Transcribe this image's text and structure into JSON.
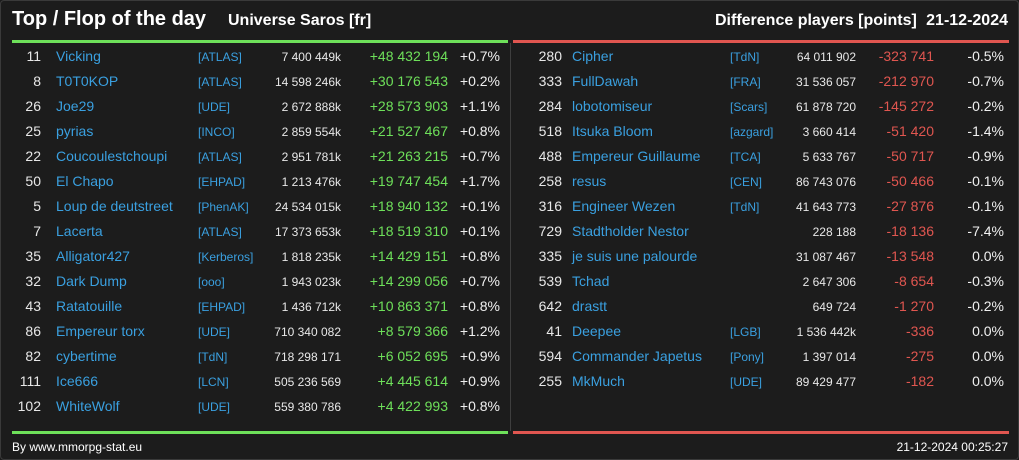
{
  "header": {
    "title": "Top / Flop of the day",
    "universe": "Universe Saros [fr]",
    "metric": "Difference players [points]",
    "date": "21-12-2024"
  },
  "colors": {
    "top_accent": "#6ee05a",
    "flop_accent": "#e05650",
    "link": "#3aa0e0",
    "background": "#1c1c1c"
  },
  "top": [
    {
      "rank": "11",
      "name": "Vicking",
      "tag": "[ATLAS]",
      "points": "7 400 449k",
      "diff": "+48 432 194",
      "pct": "+0.7%"
    },
    {
      "rank": "8",
      "name": "T0T0KOP",
      "tag": "[ATLAS]",
      "points": "14 598 246k",
      "diff": "+30 176 543",
      "pct": "+0.2%"
    },
    {
      "rank": "26",
      "name": "Joe29",
      "tag": "[UDE]",
      "points": "2 672 888k",
      "diff": "+28 573 903",
      "pct": "+1.1%"
    },
    {
      "rank": "25",
      "name": "pyrias",
      "tag": "[INCO]",
      "points": "2 859 554k",
      "diff": "+21 527 467",
      "pct": "+0.8%"
    },
    {
      "rank": "22",
      "name": "Coucoulestchoupi",
      "tag": "[ATLAS]",
      "points": "2 951 781k",
      "diff": "+21 263 215",
      "pct": "+0.7%"
    },
    {
      "rank": "50",
      "name": "El Chapo",
      "tag": "[EHPAD]",
      "points": "1 213 476k",
      "diff": "+19 747 454",
      "pct": "+1.7%"
    },
    {
      "rank": "5",
      "name": "Loup de deutstreet",
      "tag": "[PhenAK]",
      "points": "24 534 015k",
      "diff": "+18 940 132",
      "pct": "+0.1%"
    },
    {
      "rank": "7",
      "name": "Lacerta",
      "tag": "[ATLAS]",
      "points": "17 373 653k",
      "diff": "+18 519 310",
      "pct": "+0.1%"
    },
    {
      "rank": "35",
      "name": "Alligator427",
      "tag": "[Kerberos]",
      "points": "1 818 235k",
      "diff": "+14 429 151",
      "pct": "+0.8%"
    },
    {
      "rank": "32",
      "name": "Dark Dump",
      "tag": "[ooo]",
      "points": "1 943 023k",
      "diff": "+14 299 056",
      "pct": "+0.7%"
    },
    {
      "rank": "43",
      "name": "Ratatouille",
      "tag": "[EHPAD]",
      "points": "1 436 712k",
      "diff": "+10 863 371",
      "pct": "+0.8%"
    },
    {
      "rank": "86",
      "name": "Empereur torx",
      "tag": "[UDE]",
      "points": "710 340 082",
      "diff": "+8 579 366",
      "pct": "+1.2%"
    },
    {
      "rank": "82",
      "name": "cybertime",
      "tag": "[TdN]",
      "points": "718 298 171",
      "diff": "+6 052 695",
      "pct": "+0.9%"
    },
    {
      "rank": "111",
      "name": "Ice666",
      "tag": "[LCN]",
      "points": "505 236 569",
      "diff": "+4 445 614",
      "pct": "+0.9%"
    },
    {
      "rank": "102",
      "name": "WhiteWolf",
      "tag": "[UDE]",
      "points": "559 380 786",
      "diff": "+4 422 993",
      "pct": "+0.8%"
    }
  ],
  "flop": [
    {
      "rank": "280",
      "name": "Cipher",
      "tag": "[TdN]",
      "points": "64 011 902",
      "diff": "-323 741",
      "pct": "-0.5%"
    },
    {
      "rank": "333",
      "name": "FullDawah",
      "tag": "[FRA]",
      "points": "31 536 057",
      "diff": "-212 970",
      "pct": "-0.7%"
    },
    {
      "rank": "284",
      "name": "lobotomiseur",
      "tag": "[Scars]",
      "points": "61 878 720",
      "diff": "-145 272",
      "pct": "-0.2%"
    },
    {
      "rank": "518",
      "name": "Itsuka Bloom",
      "tag": "[azgard]",
      "points": "3 660 414",
      "diff": "-51 420",
      "pct": "-1.4%"
    },
    {
      "rank": "488",
      "name": "Empereur Guillaume",
      "tag": "[TCA]",
      "points": "5 633 767",
      "diff": "-50 717",
      "pct": "-0.9%"
    },
    {
      "rank": "258",
      "name": "resus",
      "tag": "[CEN]",
      "points": "86 743 076",
      "diff": "-50 466",
      "pct": "-0.1%"
    },
    {
      "rank": "316",
      "name": "Engineer Wezen",
      "tag": "[TdN]",
      "points": "41 643 773",
      "diff": "-27 876",
      "pct": "-0.1%"
    },
    {
      "rank": "729",
      "name": "Stadtholder Nestor",
      "tag": "",
      "points": "228 188",
      "diff": "-18 136",
      "pct": "-7.4%"
    },
    {
      "rank": "335",
      "name": "je suis une palourde",
      "tag": "",
      "points": "31 087 467",
      "diff": "-13 548",
      "pct": "0.0%"
    },
    {
      "rank": "539",
      "name": "Tchad",
      "tag": "",
      "points": "2 647 306",
      "diff": "-8 654",
      "pct": "-0.3%"
    },
    {
      "rank": "642",
      "name": "drastt",
      "tag": "",
      "points": "649 724",
      "diff": "-1 270",
      "pct": "-0.2%"
    },
    {
      "rank": "41",
      "name": "Deepee",
      "tag": "[LGB]",
      "points": "1 536 442k",
      "diff": "-336",
      "pct": "0.0%"
    },
    {
      "rank": "594",
      "name": "Commander Japetus",
      "tag": "[Pony]",
      "points": "1 397 014",
      "diff": "-275",
      "pct": "0.0%"
    },
    {
      "rank": "255",
      "name": "MkMuch",
      "tag": "[UDE]",
      "points": "89 429 477",
      "diff": "-182",
      "pct": "0.0%"
    }
  ],
  "footer": {
    "credit": "By www.mmorpg-stat.eu",
    "timestamp": "21-12-2024 00:25:27"
  }
}
